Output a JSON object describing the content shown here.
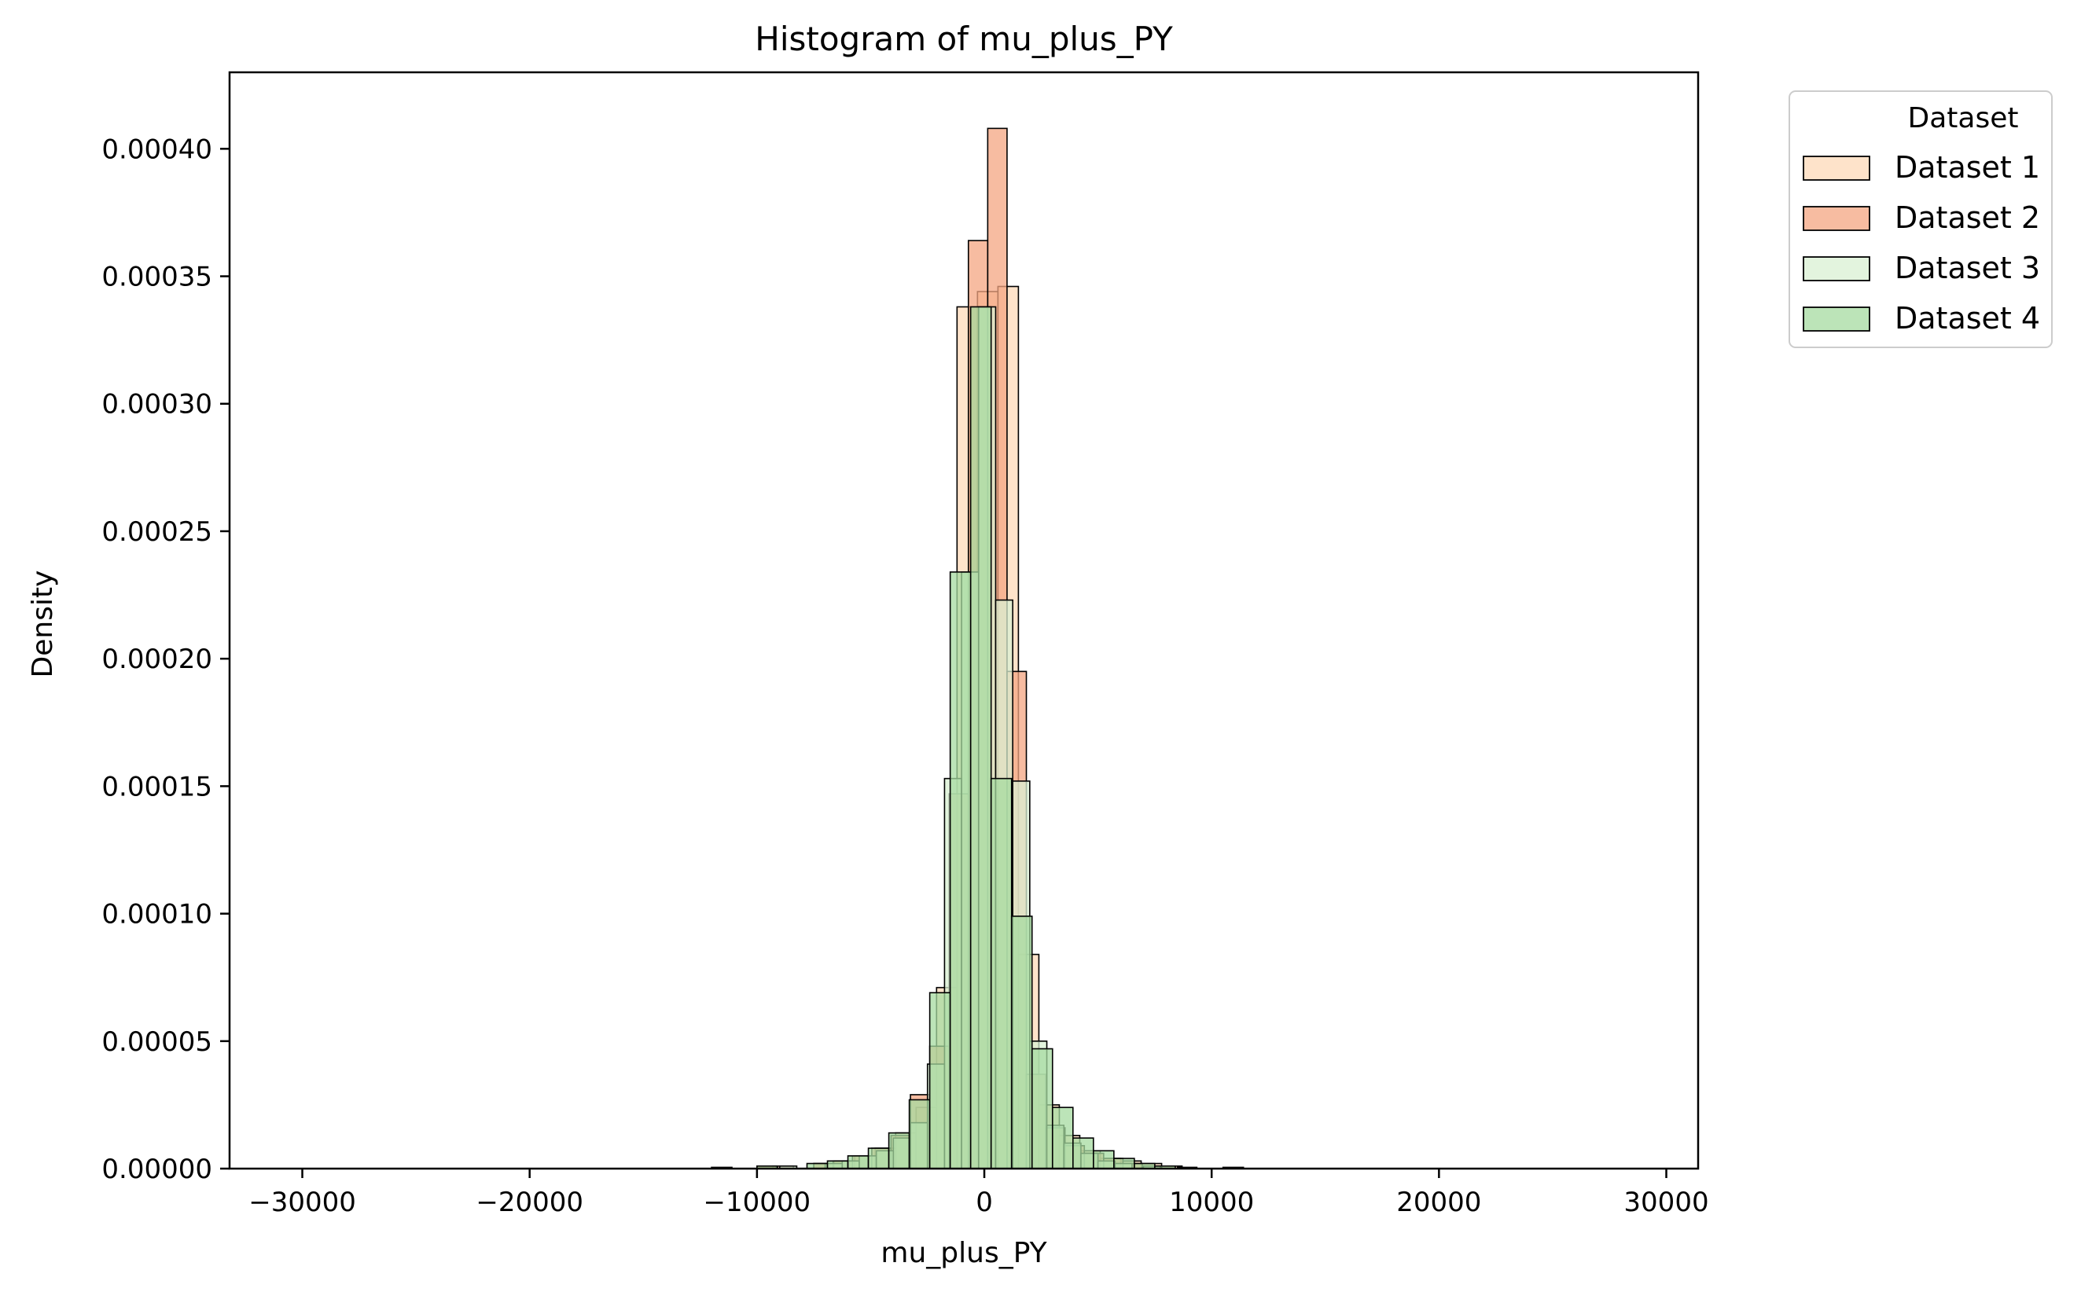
{
  "chart_data": {
    "type": "histogram",
    "title": "Histogram of mu_plus_PY",
    "xlabel": "mu_plus_PY",
    "ylabel": "Density",
    "xlim": [
      -33200,
      31400
    ],
    "ylim": [
      0,
      0.00043
    ],
    "x_ticks": [
      {
        "value": -30000,
        "label": "−30000"
      },
      {
        "value": -20000,
        "label": "−20000"
      },
      {
        "value": -10000,
        "label": "−10000"
      },
      {
        "value": 0,
        "label": "0"
      },
      {
        "value": 10000,
        "label": "10000"
      },
      {
        "value": 20000,
        "label": "20000"
      },
      {
        "value": 30000,
        "label": "30000"
      }
    ],
    "y_ticks": [
      {
        "value": 0,
        "label": "0.00000"
      },
      {
        "value": 5e-05,
        "label": "0.00005"
      },
      {
        "value": 0.0001,
        "label": "0.00010"
      },
      {
        "value": 0.00015,
        "label": "0.00015"
      },
      {
        "value": 0.0002,
        "label": "0.00020"
      },
      {
        "value": 0.00025,
        "label": "0.00025"
      },
      {
        "value": 0.0003,
        "label": "0.00030"
      },
      {
        "value": 0.00035,
        "label": "0.00035"
      },
      {
        "value": 0.0004,
        "label": "0.00040"
      }
    ],
    "grid": false,
    "legend": {
      "title": "Dataset",
      "placement": "outside-top-right"
    },
    "series": [
      {
        "name": "Dataset 1",
        "color": "#fdd9b8",
        "bin_width": 900,
        "bins": [
          [
            -12000,
            5e-07
          ],
          [
            -9300,
            1e-06
          ],
          [
            -7500,
            2e-06
          ],
          [
            -6600,
            3e-06
          ],
          [
            -5700,
            5e-06
          ],
          [
            -4800,
            8e-06
          ],
          [
            -3900,
            1.4e-05
          ],
          [
            -3000,
            2.4e-05
          ],
          [
            -2100,
            7.1e-05
          ],
          [
            -1200,
            0.000338
          ],
          [
            -300,
            0.000344
          ],
          [
            600,
            0.000346
          ],
          [
            1500,
            8.4e-05
          ],
          [
            2400,
            2.5e-05
          ],
          [
            3300,
            1.3e-05
          ],
          [
            4200,
            7e-06
          ],
          [
            5100,
            4e-06
          ],
          [
            6000,
            3e-06
          ],
          [
            6900,
            2e-06
          ],
          [
            7800,
            1e-06
          ],
          [
            10500,
            5e-07
          ]
        ]
      },
      {
        "name": "Dataset 2",
        "color": "#f4a582",
        "bin_width": 850,
        "bins": [
          [
            -10000,
            1e-06
          ],
          [
            -7500,
            2e-06
          ],
          [
            -6650,
            3e-06
          ],
          [
            -5800,
            5e-06
          ],
          [
            -4950,
            8e-06
          ],
          [
            -4100,
            1.3e-05
          ],
          [
            -3250,
            2.9e-05
          ],
          [
            -2400,
            4.8e-05
          ],
          [
            -1550,
            0.000147
          ],
          [
            -700,
            0.000364
          ],
          [
            150,
            0.000408
          ],
          [
            1000,
            0.000195
          ],
          [
            1850,
            3.7e-05
          ],
          [
            2700,
            1.6e-05
          ],
          [
            3550,
            9e-06
          ],
          [
            4400,
            6e-06
          ],
          [
            5250,
            4e-06
          ],
          [
            6100,
            2e-06
          ],
          [
            6950,
            1e-06
          ],
          [
            8500,
            5e-07
          ]
        ]
      },
      {
        "name": "Dataset 3",
        "color": "#d9f0d3",
        "bin_width": 750,
        "bins": [
          [
            -9000,
            1e-06
          ],
          [
            -7000,
            2e-06
          ],
          [
            -6250,
            3e-06
          ],
          [
            -5500,
            5e-06
          ],
          [
            -4750,
            7e-06
          ],
          [
            -4000,
            1.2e-05
          ],
          [
            -3250,
            1.8e-05
          ],
          [
            -2500,
            4.1e-05
          ],
          [
            -1750,
            0.000153
          ],
          [
            -1000,
            0.000234
          ],
          [
            -250,
            0.000338
          ],
          [
            500,
            0.000223
          ],
          [
            1250,
            0.000152
          ],
          [
            2000,
            5e-05
          ],
          [
            2750,
            1.7e-05
          ],
          [
            3500,
            1e-05
          ],
          [
            4250,
            6e-06
          ],
          [
            5000,
            3e-06
          ],
          [
            5750,
            2e-06
          ],
          [
            7000,
            1e-06
          ]
        ]
      },
      {
        "name": "Dataset 4",
        "color": "#a6dba0",
        "bin_width": 900,
        "bins": [
          [
            -10000,
            1e-06
          ],
          [
            -7800,
            2e-06
          ],
          [
            -6900,
            3e-06
          ],
          [
            -6000,
            5e-06
          ],
          [
            -5100,
            8e-06
          ],
          [
            -4200,
            1.4e-05
          ],
          [
            -3300,
            2.7e-05
          ],
          [
            -2400,
            6.9e-05
          ],
          [
            -1500,
            0.000234
          ],
          [
            -600,
            0.000338
          ],
          [
            300,
            0.000153
          ],
          [
            1200,
            9.9e-05
          ],
          [
            2100,
            4.7e-05
          ],
          [
            3000,
            2.4e-05
          ],
          [
            3900,
            1.2e-05
          ],
          [
            4800,
            7e-06
          ],
          [
            5700,
            4e-06
          ],
          [
            6600,
            2e-06
          ],
          [
            7500,
            1e-06
          ]
        ]
      }
    ]
  }
}
